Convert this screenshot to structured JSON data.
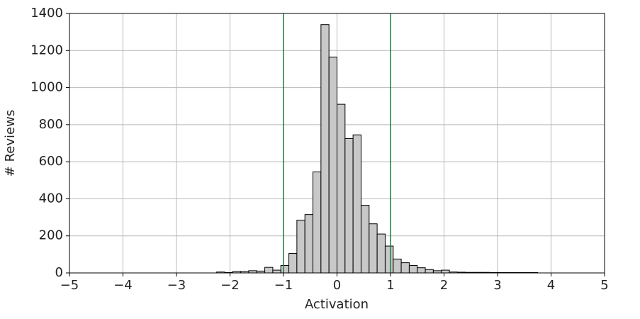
{
  "chart_data": {
    "type": "histogram",
    "xlabel": "Activation",
    "ylabel": "# Reviews",
    "bins": [
      -2.25,
      -2.1,
      -1.95,
      -1.8,
      -1.65,
      -1.5,
      -1.35,
      -1.2,
      -1.05,
      -0.9,
      -0.75,
      -0.6,
      -0.45,
      -0.3,
      -0.15,
      0,
      0.15,
      0.3,
      0.45,
      0.6,
      0.75,
      0.9,
      1.05,
      1.2,
      1.35,
      1.5,
      1.65,
      1.8,
      1.95,
      2.1,
      2.25,
      2.4,
      2.55,
      2.7,
      2.85,
      3,
      3.15,
      3.3,
      3.45,
      3.6,
      3.75
    ],
    "values": [
      5,
      2,
      8,
      8,
      12,
      10,
      30,
      15,
      40,
      105,
      285,
      315,
      545,
      1340,
      1165,
      910,
      725,
      745,
      365,
      265,
      210,
      145,
      75,
      55,
      40,
      28,
      18,
      12,
      15,
      5,
      4,
      3,
      3,
      3,
      2,
      2,
      2,
      2,
      2,
      2
    ],
    "color": "#c8c8c8",
    "edgecolor": "#000000",
    "vlines": [
      -1,
      1
    ],
    "vline_color": "#1a7a3a",
    "xlim": [
      -5,
      5
    ],
    "xticks": [
      {
        "value": -5,
        "label": "−5"
      },
      {
        "value": -4,
        "label": "−4"
      },
      {
        "value": -3,
        "label": "−3"
      },
      {
        "value": -2,
        "label": "−2"
      },
      {
        "value": -1,
        "label": "−1"
      },
      0,
      1,
      2,
      3,
      4,
      5
    ],
    "ylim": [
      0,
      1400
    ],
    "yticks": [
      0,
      200,
      400,
      600,
      800,
      1000,
      1200,
      1400
    ],
    "grid": true
  }
}
